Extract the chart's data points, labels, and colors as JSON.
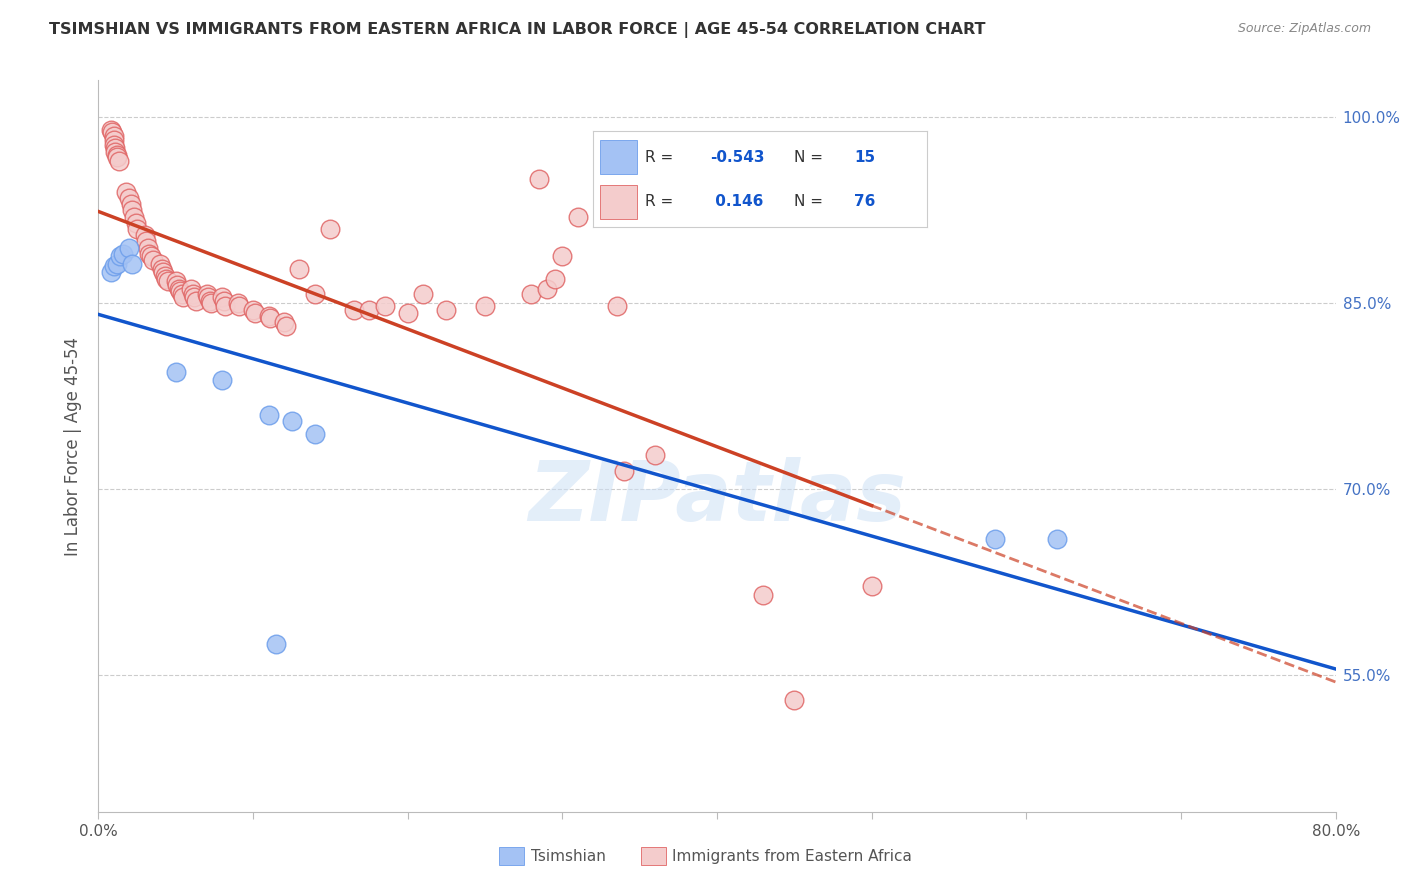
{
  "title": "TSIMSHIAN VS IMMIGRANTS FROM EASTERN AFRICA IN LABOR FORCE | AGE 45-54 CORRELATION CHART",
  "source": "Source: ZipAtlas.com",
  "ylabel": "In Labor Force | Age 45-54",
  "x_min": 0.0,
  "x_max": 0.8,
  "y_min": 0.44,
  "y_max": 1.03,
  "y_ticks": [
    0.55,
    0.7,
    0.85,
    1.0
  ],
  "blue_color": "#a4c2f4",
  "pink_color": "#f4cccc",
  "blue_edge_color": "#6d9eeb",
  "pink_edge_color": "#e06666",
  "blue_line_color": "#1155cc",
  "pink_line_color": "#cc4125",
  "legend_r_blue": "-0.543",
  "legend_n_blue": "15",
  "legend_r_pink": "0.146",
  "legend_n_pink": "76",
  "watermark": "ZIPatlas",
  "blue_scatter_x": [
    0.008,
    0.01,
    0.012,
    0.014,
    0.016,
    0.02,
    0.022,
    0.05,
    0.08,
    0.11,
    0.125,
    0.14,
    0.58,
    0.62,
    0.115
  ],
  "blue_scatter_y": [
    0.875,
    0.88,
    0.882,
    0.888,
    0.89,
    0.895,
    0.882,
    0.795,
    0.788,
    0.76,
    0.755,
    0.745,
    0.66,
    0.66,
    0.575
  ],
  "pink_scatter_x": [
    0.008,
    0.009,
    0.01,
    0.01,
    0.01,
    0.011,
    0.011,
    0.012,
    0.012,
    0.013,
    0.018,
    0.02,
    0.021,
    0.022,
    0.023,
    0.024,
    0.025,
    0.03,
    0.031,
    0.032,
    0.033,
    0.034,
    0.035,
    0.04,
    0.041,
    0.042,
    0.043,
    0.044,
    0.045,
    0.05,
    0.051,
    0.052,
    0.053,
    0.054,
    0.055,
    0.06,
    0.061,
    0.062,
    0.063,
    0.07,
    0.071,
    0.072,
    0.073,
    0.08,
    0.081,
    0.082,
    0.09,
    0.091,
    0.1,
    0.101,
    0.11,
    0.111,
    0.12,
    0.121,
    0.13,
    0.14,
    0.15,
    0.165,
    0.175,
    0.185,
    0.2,
    0.21,
    0.225,
    0.25,
    0.28,
    0.3,
    0.34,
    0.36,
    0.31,
    0.29,
    0.43,
    0.45,
    0.5,
    0.285,
    0.295,
    0.335
  ],
  "pink_scatter_y": [
    0.99,
    0.988,
    0.985,
    0.982,
    0.978,
    0.975,
    0.972,
    0.97,
    0.968,
    0.965,
    0.94,
    0.935,
    0.93,
    0.925,
    0.92,
    0.915,
    0.91,
    0.905,
    0.9,
    0.895,
    0.89,
    0.888,
    0.885,
    0.882,
    0.878,
    0.875,
    0.872,
    0.87,
    0.868,
    0.868,
    0.865,
    0.862,
    0.86,
    0.858,
    0.855,
    0.862,
    0.858,
    0.855,
    0.852,
    0.858,
    0.855,
    0.852,
    0.85,
    0.855,
    0.852,
    0.848,
    0.85,
    0.848,
    0.845,
    0.842,
    0.84,
    0.838,
    0.835,
    0.832,
    0.878,
    0.858,
    0.91,
    0.845,
    0.845,
    0.848,
    0.842,
    0.858,
    0.845,
    0.848,
    0.858,
    0.888,
    0.715,
    0.728,
    0.92,
    0.862,
    0.615,
    0.53,
    0.622,
    0.95,
    0.87,
    0.848
  ]
}
